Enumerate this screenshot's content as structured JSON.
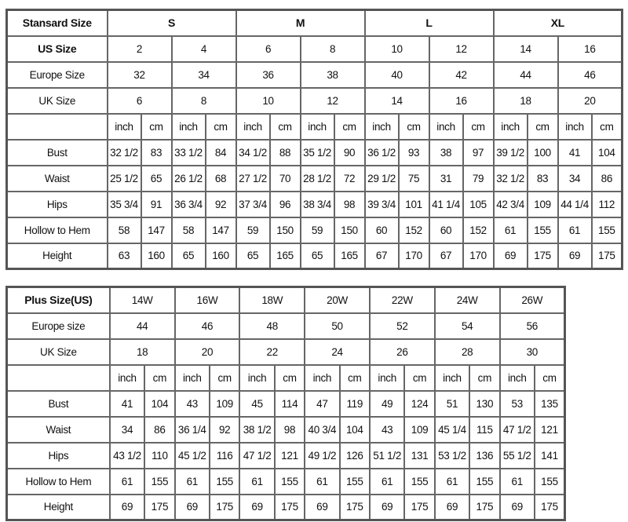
{
  "standard_table": {
    "header_label": "Stansard Size",
    "size_groups": [
      "S",
      "M",
      "L",
      "XL"
    ],
    "us_label": "US Size",
    "us_sizes": [
      "2",
      "4",
      "6",
      "8",
      "10",
      "12",
      "14",
      "16"
    ],
    "europe_label": "Europe Size",
    "europe_sizes": [
      "32",
      "34",
      "36",
      "38",
      "40",
      "42",
      "44",
      "46"
    ],
    "uk_label": "UK Size",
    "uk_sizes": [
      "6",
      "8",
      "10",
      "12",
      "14",
      "16",
      "18",
      "20"
    ],
    "unit_inch": "inch",
    "unit_cm": "cm",
    "rows": [
      {
        "label": "Bust",
        "values": [
          "32 1/2",
          "83",
          "33 1/2",
          "84",
          "34 1/2",
          "88",
          "35 1/2",
          "90",
          "36 1/2",
          "93",
          "38",
          "97",
          "39 1/2",
          "100",
          "41",
          "104"
        ]
      },
      {
        "label": "Waist",
        "values": [
          "25 1/2",
          "65",
          "26 1/2",
          "68",
          "27 1/2",
          "70",
          "28 1/2",
          "72",
          "29 1/2",
          "75",
          "31",
          "79",
          "32 1/2",
          "83",
          "34",
          "86"
        ]
      },
      {
        "label": "Hips",
        "values": [
          "35 3/4",
          "91",
          "36 3/4",
          "92",
          "37 3/4",
          "96",
          "38 3/4",
          "98",
          "39 3/4",
          "101",
          "41 1/4",
          "105",
          "42 3/4",
          "109",
          "44 1/4",
          "112"
        ]
      },
      {
        "label": "Hollow to Hem",
        "values": [
          "58",
          "147",
          "58",
          "147",
          "59",
          "150",
          "59",
          "150",
          "60",
          "152",
          "60",
          "152",
          "61",
          "155",
          "61",
          "155"
        ]
      },
      {
        "label": "Height",
        "values": [
          "63",
          "160",
          "65",
          "160",
          "65",
          "165",
          "65",
          "165",
          "67",
          "170",
          "67",
          "170",
          "69",
          "175",
          "69",
          "175"
        ]
      }
    ]
  },
  "plus_table": {
    "header_label": "Plus Size(US)",
    "us_sizes": [
      "14W",
      "16W",
      "18W",
      "20W",
      "22W",
      "24W",
      "26W"
    ],
    "europe_label": "Europe size",
    "europe_sizes": [
      "44",
      "46",
      "48",
      "50",
      "52",
      "54",
      "56"
    ],
    "uk_label": "UK Size",
    "uk_sizes": [
      "18",
      "20",
      "22",
      "24",
      "26",
      "28",
      "30"
    ],
    "unit_inch": "inch",
    "unit_cm": "cm",
    "rows": [
      {
        "label": "Bust",
        "values": [
          "41",
          "104",
          "43",
          "109",
          "45",
          "114",
          "47",
          "119",
          "49",
          "124",
          "51",
          "130",
          "53",
          "135"
        ]
      },
      {
        "label": "Waist",
        "values": [
          "34",
          "86",
          "36 1/4",
          "92",
          "38 1/2",
          "98",
          "40 3/4",
          "104",
          "43",
          "109",
          "45 1/4",
          "115",
          "47 1/2",
          "121"
        ]
      },
      {
        "label": "Hips",
        "values": [
          "43 1/2",
          "110",
          "45 1/2",
          "116",
          "47 1/2",
          "121",
          "49 1/2",
          "126",
          "51 1/2",
          "131",
          "53 1/2",
          "136",
          "55 1/2",
          "141"
        ]
      },
      {
        "label": "Hollow to Hem",
        "values": [
          "61",
          "155",
          "61",
          "155",
          "61",
          "155",
          "61",
          "155",
          "61",
          "155",
          "61",
          "155",
          "61",
          "155"
        ]
      },
      {
        "label": "Height",
        "values": [
          "69",
          "175",
          "69",
          "175",
          "69",
          "175",
          "69",
          "175",
          "69",
          "175",
          "69",
          "175",
          "69",
          "175"
        ]
      }
    ]
  }
}
